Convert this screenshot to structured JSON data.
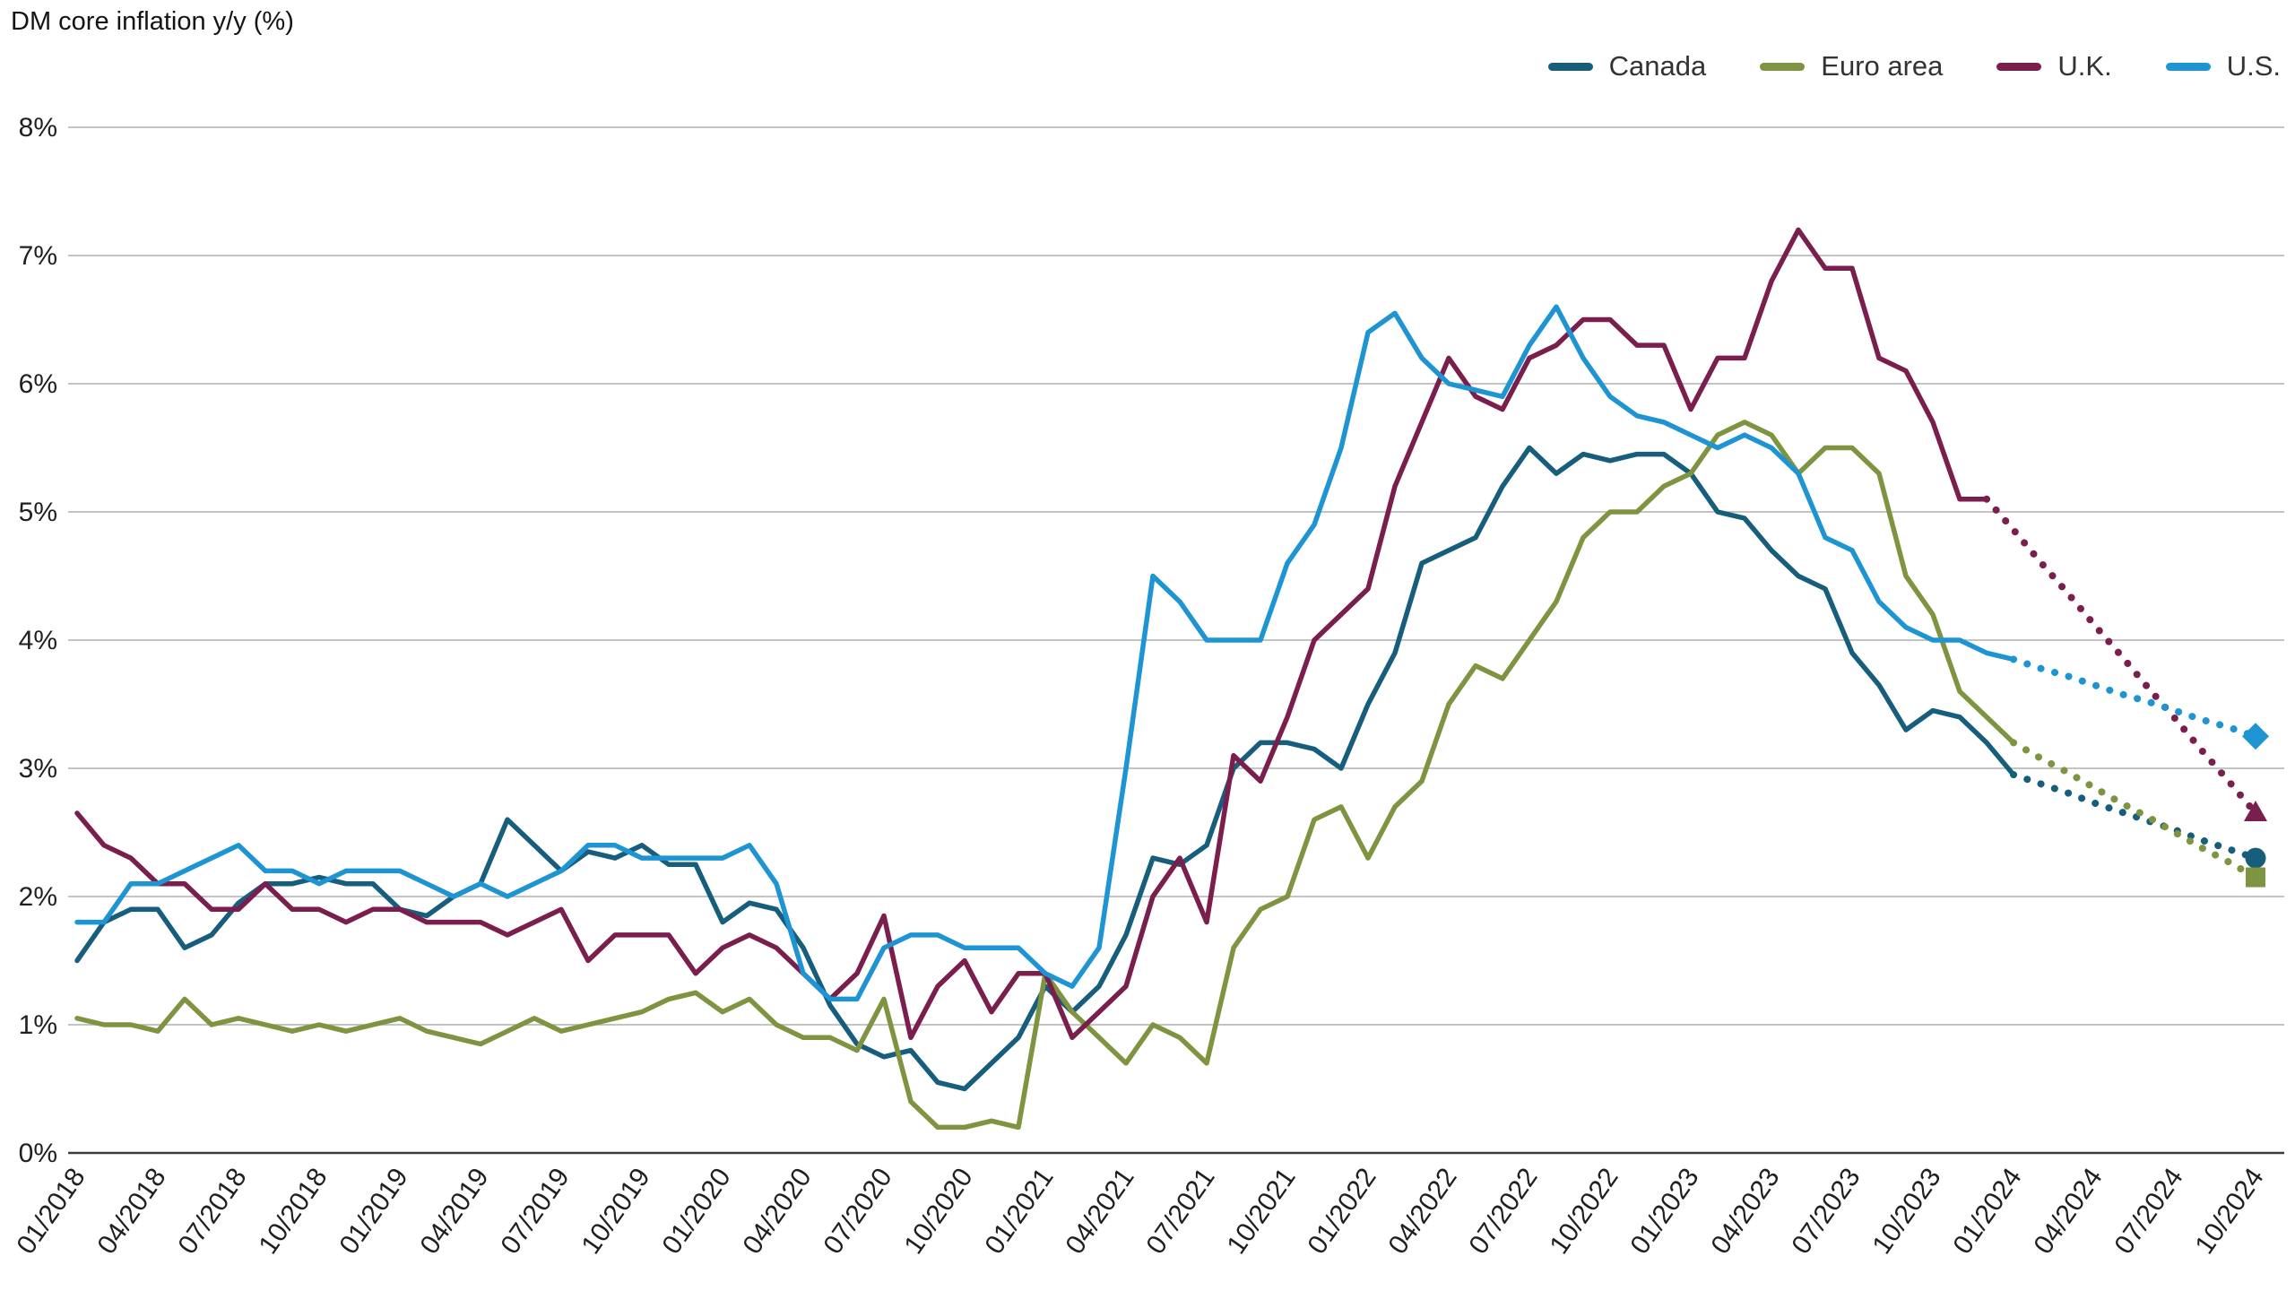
{
  "title": "DM core inflation y/y (%)",
  "colors": {
    "canada": "#175d7c",
    "euro_area": "#7e9440",
    "uk": "#7a1e4d",
    "us": "#1e95d2",
    "grid": "#b0b0b0",
    "axis": "#3c3c3c",
    "text": "#1f1f1f"
  },
  "legend": [
    {
      "label": "Canada",
      "color": "#175d7c"
    },
    {
      "label": "Euro area",
      "color": "#7e9440"
    },
    {
      "label": "U.K.",
      "color": "#7a1e4d"
    },
    {
      "label": "U.S.",
      "color": "#1e95d2"
    }
  ],
  "chart_data": {
    "type": "line",
    "title": "DM core inflation y/y (%)",
    "xlabel": "",
    "ylabel": "",
    "ylim": [
      0,
      8
    ],
    "grid": true,
    "legend_position": "top-right",
    "y_tick_labels": [
      "0%",
      "1%",
      "2%",
      "3%",
      "4%",
      "5%",
      "6%",
      "7%",
      "8%"
    ],
    "x_tick_labels": [
      "01/2018",
      "04/2018",
      "07/2018",
      "10/2018",
      "01/2019",
      "04/2019",
      "07/2019",
      "10/2019",
      "01/2020",
      "04/2020",
      "07/2020",
      "10/2020",
      "01/2021",
      "04/2021",
      "07/2021",
      "10/2021",
      "01/2022",
      "04/2022",
      "07/2022",
      "10/2022",
      "01/2023",
      "04/2023",
      "07/2023",
      "10/2023",
      "01/2024",
      "04/2024",
      "07/2024",
      "10/2024"
    ],
    "x_months_per_tick": 3,
    "forecast_note": "dotted segments after the forecast_start_index are projections ending in a marker",
    "series": [
      {
        "name": "Canada",
        "color": "#175d7c",
        "marker": "circle",
        "forecast_start_index": 72,
        "values": [
          1.5,
          1.8,
          1.9,
          1.9,
          1.6,
          1.7,
          1.95,
          2.1,
          2.1,
          2.15,
          2.1,
          2.1,
          1.9,
          1.85,
          2.0,
          2.1,
          2.6,
          2.4,
          2.2,
          2.35,
          2.3,
          2.4,
          2.25,
          2.25,
          1.8,
          1.95,
          1.9,
          1.6,
          1.15,
          0.85,
          0.75,
          0.8,
          0.55,
          0.5,
          0.7,
          0.9,
          1.3,
          1.1,
          1.3,
          1.7,
          2.3,
          2.25,
          2.4,
          3.0,
          3.2,
          3.2,
          3.15,
          3.0,
          3.5,
          3.9,
          4.6,
          4.7,
          4.8,
          5.2,
          5.5,
          5.3,
          5.45,
          5.4,
          5.45,
          5.45,
          5.3,
          5.0,
          4.95,
          4.7,
          4.5,
          4.4,
          3.9,
          3.65,
          3.3,
          3.45,
          3.4,
          3.2,
          2.95,
          2.88,
          2.81,
          2.73,
          2.66,
          2.59,
          2.52,
          2.44,
          2.37,
          2.3
        ]
      },
      {
        "name": "Euro area",
        "color": "#7e9440",
        "marker": "square",
        "forecast_start_index": 72,
        "values": [
          1.05,
          1.0,
          1.0,
          0.95,
          1.2,
          1.0,
          1.05,
          1.0,
          0.95,
          1.0,
          0.95,
          1.0,
          1.05,
          0.95,
          0.9,
          0.85,
          0.95,
          1.05,
          0.95,
          1.0,
          1.05,
          1.1,
          1.2,
          1.25,
          1.1,
          1.2,
          1.0,
          0.9,
          0.9,
          0.8,
          1.2,
          0.4,
          0.2,
          0.2,
          0.25,
          0.2,
          1.4,
          1.1,
          0.9,
          0.7,
          1.0,
          0.9,
          0.7,
          1.6,
          1.9,
          2.0,
          2.6,
          2.7,
          2.3,
          2.7,
          2.9,
          3.5,
          3.8,
          3.7,
          4.0,
          4.3,
          4.8,
          5.0,
          5.0,
          5.2,
          5.3,
          5.6,
          5.7,
          5.6,
          5.3,
          5.5,
          5.5,
          5.3,
          4.5,
          4.2,
          3.6,
          3.4,
          3.2,
          3.08,
          2.97,
          2.85,
          2.73,
          2.62,
          2.5,
          2.38,
          2.27,
          2.15
        ]
      },
      {
        "name": "U.K.",
        "color": "#7a1e4d",
        "marker": "triangle",
        "forecast_start_index": 71,
        "values": [
          2.65,
          2.4,
          2.3,
          2.1,
          2.1,
          1.9,
          1.9,
          2.1,
          1.9,
          1.9,
          1.8,
          1.9,
          1.9,
          1.8,
          1.8,
          1.8,
          1.7,
          1.8,
          1.9,
          1.5,
          1.7,
          1.7,
          1.7,
          1.4,
          1.6,
          1.7,
          1.6,
          1.4,
          1.2,
          1.4,
          1.85,
          0.9,
          1.3,
          1.5,
          1.1,
          1.4,
          1.4,
          0.9,
          1.1,
          1.3,
          2.0,
          2.3,
          1.8,
          3.1,
          2.9,
          3.4,
          4.0,
          4.2,
          4.4,
          5.2,
          5.7,
          6.2,
          5.9,
          5.8,
          6.2,
          6.3,
          6.5,
          6.5,
          6.3,
          6.3,
          5.8,
          6.2,
          6.2,
          6.8,
          7.2,
          6.9,
          6.9,
          6.2,
          6.1,
          5.7,
          5.1,
          5.1,
          4.86,
          4.61,
          4.37,
          4.12,
          3.88,
          3.63,
          3.39,
          3.14,
          2.9,
          2.65
        ]
      },
      {
        "name": "U.S.",
        "color": "#1e95d2",
        "marker": "diamond",
        "forecast_start_index": 72,
        "values": [
          1.8,
          1.8,
          2.1,
          2.1,
          2.2,
          2.3,
          2.4,
          2.2,
          2.2,
          2.1,
          2.2,
          2.2,
          2.2,
          2.1,
          2.0,
          2.1,
          2.0,
          2.1,
          2.2,
          2.4,
          2.4,
          2.3,
          2.3,
          2.3,
          2.3,
          2.4,
          2.1,
          1.4,
          1.2,
          1.2,
          1.6,
          1.7,
          1.7,
          1.6,
          1.6,
          1.6,
          1.4,
          1.3,
          1.6,
          3.0,
          4.5,
          4.3,
          4.0,
          4.0,
          4.0,
          4.6,
          4.9,
          5.5,
          6.4,
          6.55,
          6.2,
          6.0,
          5.95,
          5.9,
          6.3,
          6.6,
          6.2,
          5.9,
          5.75,
          5.7,
          5.6,
          5.5,
          5.6,
          5.5,
          5.3,
          4.8,
          4.7,
          4.3,
          4.1,
          4.0,
          4.0,
          3.9,
          3.85,
          3.78,
          3.72,
          3.65,
          3.58,
          3.52,
          3.45,
          3.38,
          3.32,
          3.25
        ]
      }
    ]
  }
}
